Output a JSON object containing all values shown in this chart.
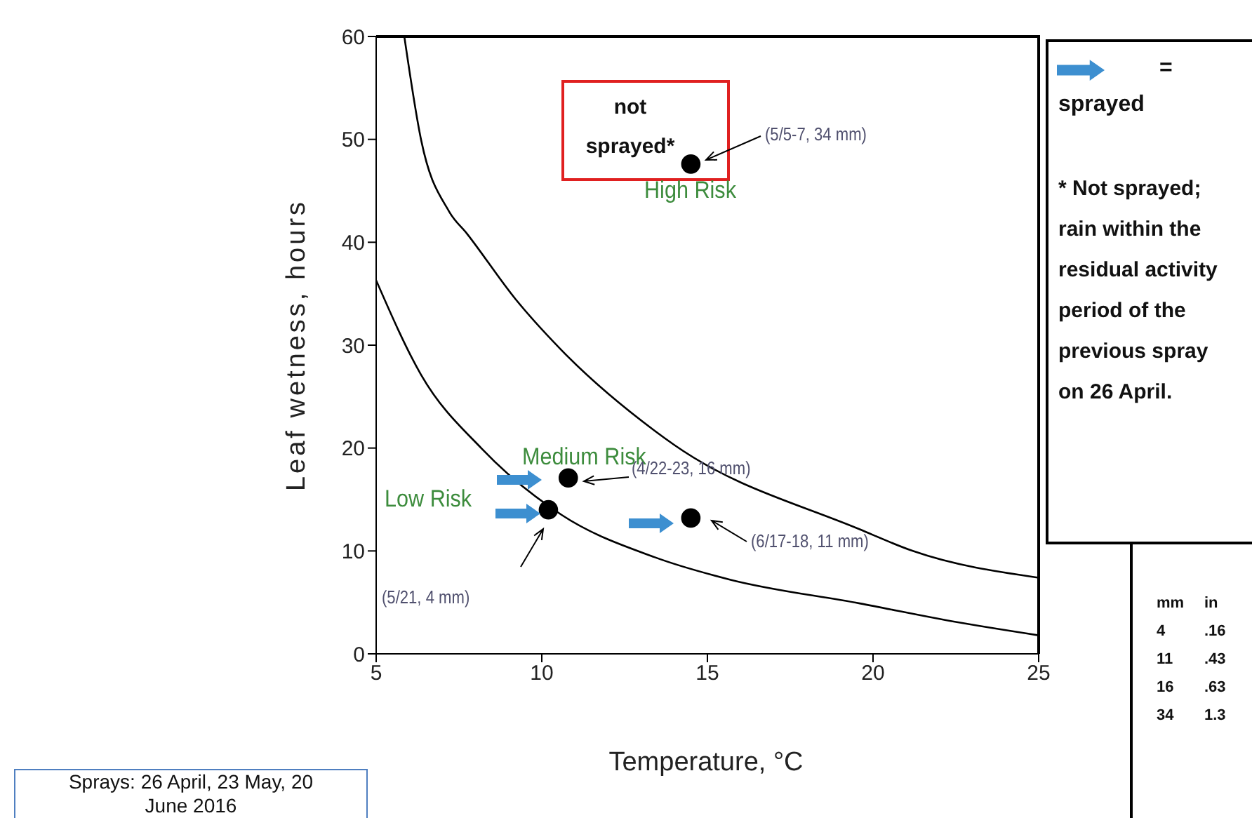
{
  "chart_data": {
    "type": "scatter",
    "xlabel": "Temperature, °C",
    "ylabel": "Leaf wetness, hours",
    "xlim": [
      5,
      25
    ],
    "xticks": [
      5,
      10,
      15,
      20,
      25
    ],
    "ylim": [
      0,
      60
    ],
    "yticks": [
      0,
      10,
      20,
      30,
      40,
      50,
      60
    ],
    "grid": false,
    "legend": false,
    "series": [
      {
        "type": "line",
        "color": "#000000",
        "marker": "none",
        "x": [
          5.85,
          6.36,
          7.2,
          7.75,
          9.2,
          10.6,
          13.4,
          14.0,
          19.6,
          21.2,
          25
        ],
        "values": [
          60,
          49.9,
          43,
          40.8,
          34.5,
          29.5,
          21.7,
          20.3,
          12.1,
          10,
          7.4
        ]
      },
      {
        "type": "line",
        "color": "#000000",
        "marker": "none",
        "x": [
          5,
          6.36,
          8.2,
          10.6,
          13.4,
          15.7,
          19.6,
          22.5,
          25
        ],
        "values": [
          36.3,
          27.1,
          19.9,
          13.5,
          9.4,
          7.2,
          4.9,
          3.1,
          1.8
        ]
      },
      {
        "type": "scatter",
        "color": "#000000",
        "marker": "circle",
        "x": [
          14.5,
          10.8,
          10.2,
          14.5
        ],
        "values": [
          47.6,
          17.1,
          14.0,
          13.2
        ]
      }
    ],
    "annotations": [
      "not sprayed*",
      "High Risk",
      "Medium Risk",
      "Low Risk",
      "(5/5-7, 34 mm)",
      "(4/22-23, 16 mm)",
      "(6/17-18, 11 mm)",
      "(5/21, 4 mm)",
      "= sprayed",
      "* Not sprayed; rain within the residual activity period of the previous spray on 26 April.",
      "mm in",
      "4 .16",
      "11 .43",
      "16 .63",
      "34 1.3",
      "Sprays: 26 April, 23 May, 20 June 2016"
    ]
  }
}
